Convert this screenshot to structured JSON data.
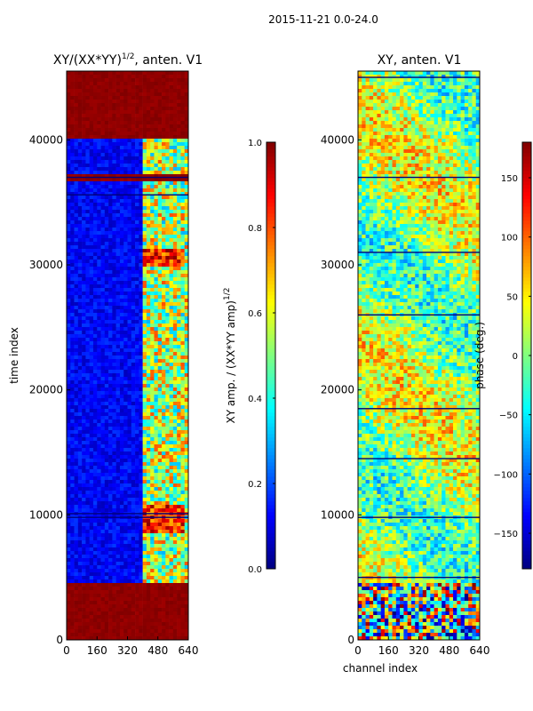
{
  "suptitle": "2015-11-21 0.0-24.0",
  "chart_data": [
    {
      "type": "heatmap",
      "title": "XY/(XX*YY)^1/2, anten. V1",
      "title_main": "XY/(XX*YY)",
      "title_exp": "1/2",
      "title_tail": ", anten. V1",
      "xlabel": "",
      "ylabel": "time index",
      "xlim": [
        0,
        640
      ],
      "ylim": [
        0,
        45500
      ],
      "xticks": [
        0,
        160,
        320,
        480,
        640
      ],
      "yticks": [
        0,
        10000,
        20000,
        30000,
        40000
      ],
      "colormap": "jet",
      "colorbar": {
        "label": "XY amp. / (XX*YY amp)^1/2",
        "label_main": "XY amp. / (XX*YY amp)",
        "label_exp": "1/2",
        "range": [
          0.0,
          1.0
        ],
        "ticks": [
          "0.0",
          "0.2",
          "0.4",
          "0.6",
          "0.8",
          "1.0"
        ],
        "tick_values": [
          0.0,
          0.2,
          0.4,
          0.6,
          0.8,
          1.0
        ]
      },
      "low_band_upper_channel": 400,
      "low_band_value": 0.12,
      "high_band_value": 0.55,
      "saturated_time_ranges": [
        [
          0,
          4500
        ],
        [
          36800,
          37300
        ],
        [
          40000,
          45500
        ]
      ],
      "bright_block_time_ranges": [
        [
          8500,
          10800
        ],
        [
          29800,
          31200
        ]
      ],
      "gap_rows": [
        9800,
        10100,
        35600,
        37000
      ]
    },
    {
      "type": "heatmap",
      "title": "XY, anten. V1",
      "xlabel": "channel index",
      "ylabel": "",
      "xlim": [
        0,
        640
      ],
      "ylim": [
        0,
        45500
      ],
      "xticks": [
        0,
        160,
        320,
        480,
        640
      ],
      "yticks": [
        0,
        10000,
        20000,
        30000,
        40000
      ],
      "colormap": "jet",
      "colorbar": {
        "label": "phase (deg.)",
        "range": [
          -180,
          180
        ],
        "ticks": [
          "−150",
          "−100",
          "−50",
          "0",
          "50",
          "100",
          "150"
        ],
        "tick_values": [
          -150,
          -100,
          -50,
          0,
          50,
          100,
          150
        ]
      },
      "phase_mean": 10,
      "noisy_time_ranges": [
        [
          0,
          4500
        ]
      ],
      "gap_rows": [
        5000,
        9800,
        14500,
        18500,
        26000,
        31000,
        37000,
        45000
      ]
    }
  ]
}
